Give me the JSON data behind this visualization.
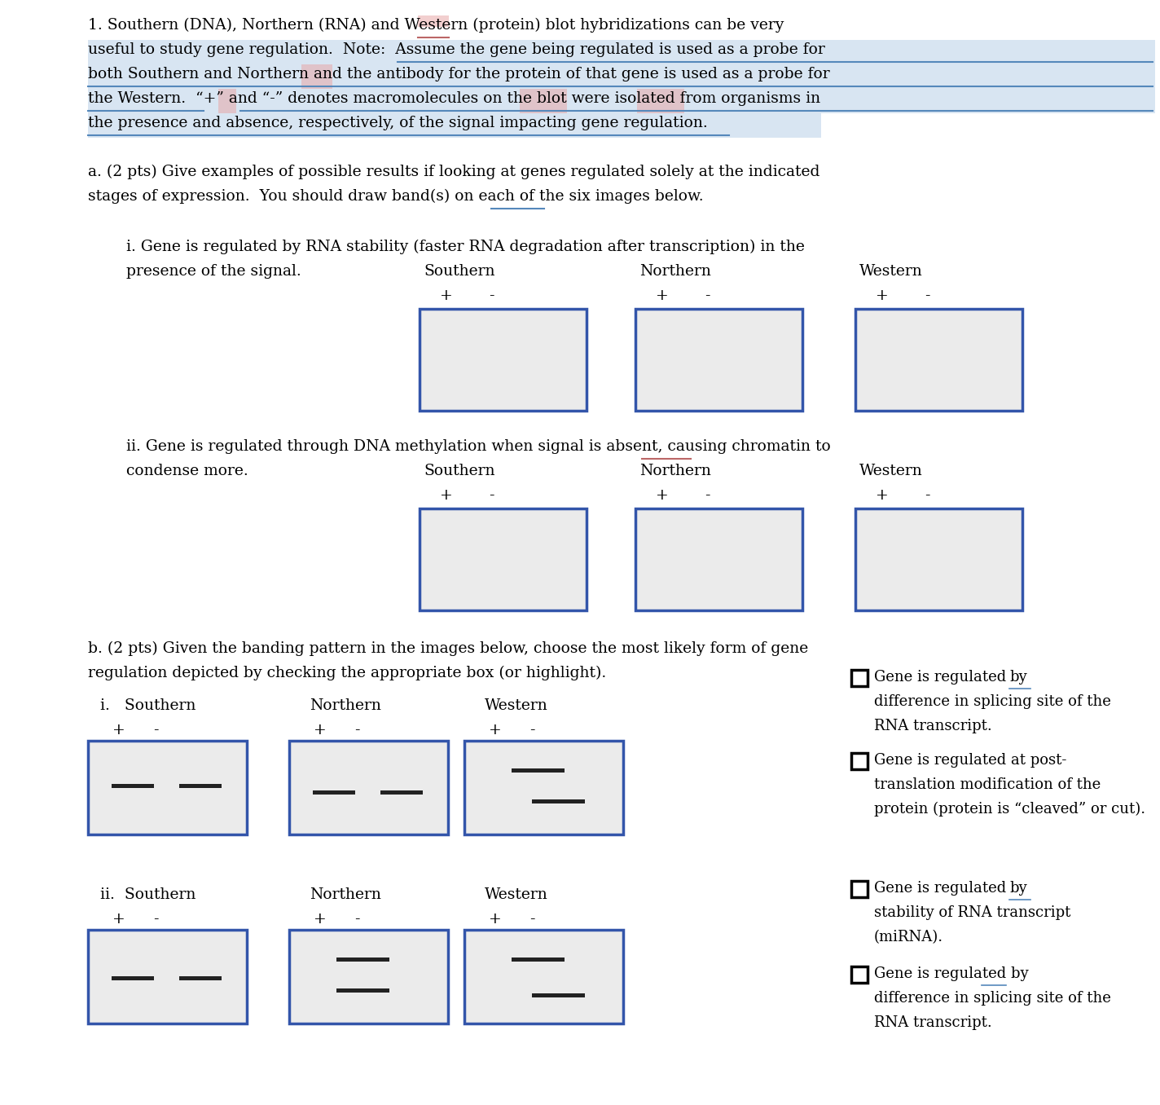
{
  "bg_color": "#ffffff",
  "text_color": "#000000",
  "box_border_color": "#3355aa",
  "box_fill_color": "#ebebeb",
  "band_color": "#222222",
  "highlight_blue": "#b8d0e8",
  "highlight_pink": "#e8a8a8",
  "underline_blue": "#5588bb",
  "underline_pink": "#bb6666",
  "lines_p1": [
    "1. Southern (DNA), Northern (RNA) and Western (protein) blot hybridizations can be very",
    "useful to study gene regulation.  Note:  Assume the gene being regulated is used as a probe for",
    "both Southern and Northern and the antibody for the protein of that gene is used as a probe for",
    "the Western.  “+” and “-” denotes macromolecules on the blot were isolated from organisms in",
    "the presence and absence, respectively, of the signal impacting gene regulation."
  ],
  "lines_pa": [
    "a. (2 pts) Give examples of possible results if looking at genes regulated solely at the indicated",
    "stages of expression.  You should draw band(s) on each of the six images below."
  ],
  "line_pi1": "i. Gene is regulated by RNA stability (faster RNA degradation after transcription) in the",
  "line_pi2": "presence of the signal.",
  "line_pii1": "ii. Gene is regulated through DNA methylation when signal is absent, causing chromatin to",
  "line_pii2": "condense more.",
  "line_pb1": "b. (2 pts) Given the banding pattern in the images below, choose the most likely form of gene",
  "line_pb2": "regulation depicted by checking the appropriate box (or highlight).",
  "choice_i1a": "Gene is regulated ̲b̲y̲",
  "choice_i1b": "difference in splicing site of the",
  "choice_i1c": "RNA transcript.",
  "choice_i2a": "Gene is regulated at post-",
  "choice_i2b": "translation modification of the",
  "choice_i2c": "protein (protein is “cleaved” or cut).",
  "choice_ii1a": "Gene is regulated ̲b̲y̲",
  "choice_ii1b": "stability of RNA transcript",
  "choice_ii1c": "(miRNA).",
  "choice_ii2a": "Gene is regulated by",
  "choice_ii2b": "difference in splicing site of the",
  "choice_ii2c": "RNA transcript."
}
